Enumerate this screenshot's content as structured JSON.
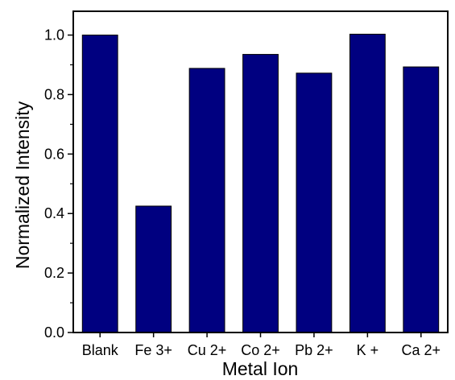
{
  "chart_data": {
    "type": "bar",
    "title": "",
    "xlabel": "Metal Ion",
    "ylabel": "Normalized Intensity",
    "categories": [
      "Blank",
      "Fe 3+",
      "Cu 2+",
      "Co 2+",
      "Pb 2+",
      "K +",
      "Ca 2+"
    ],
    "values": [
      1.0,
      0.425,
      0.888,
      0.935,
      0.872,
      1.003,
      0.893
    ],
    "ylim": [
      0.0,
      1.08
    ],
    "yticks": [
      0.0,
      0.2,
      0.4,
      0.6,
      0.8,
      1.0
    ],
    "ytick_labels": [
      "0.0",
      "0.2",
      "0.4",
      "0.6",
      "0.8",
      "1.0"
    ],
    "minor_y_step": 0.1,
    "grid": false,
    "legend": "none",
    "bar_color": "#000080"
  }
}
